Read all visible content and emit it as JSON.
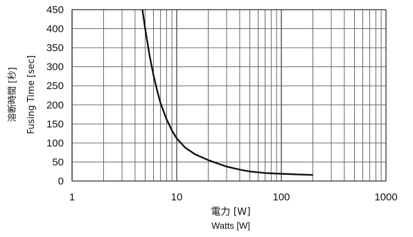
{
  "chart_data": {
    "type": "line",
    "xscale": "log",
    "xlim": [
      1,
      1000
    ],
    "ylim": [
      0,
      450
    ],
    "grid": true,
    "xticks": [
      1,
      10,
      100,
      1000
    ],
    "xtick_labels": [
      "1",
      "10",
      "100",
      "1000"
    ],
    "yticks": [
      0,
      50,
      100,
      150,
      200,
      250,
      300,
      350,
      400,
      450
    ],
    "ytick_labels": [
      "0",
      "50",
      "100",
      "150",
      "200",
      "250",
      "300",
      "350",
      "400",
      "450"
    ],
    "xlabel_primary": "電力 [W]",
    "xlabel_secondary": "Watts [W]",
    "ylabel_primary": "溶断時間 [秒]",
    "ylabel_secondary": "Fusing Time [sec]",
    "series": [
      {
        "x": [
          4.7,
          5,
          5.5,
          6,
          6.5,
          7,
          8,
          9,
          10,
          12,
          15,
          20,
          30,
          40,
          50,
          70,
          100,
          150,
          200
        ],
        "y": [
          450,
          400,
          330,
          278,
          238,
          205,
          162,
          133,
          112,
          88,
          70,
          55,
          38,
          30,
          25,
          21,
          19,
          17,
          16
        ]
      }
    ]
  }
}
